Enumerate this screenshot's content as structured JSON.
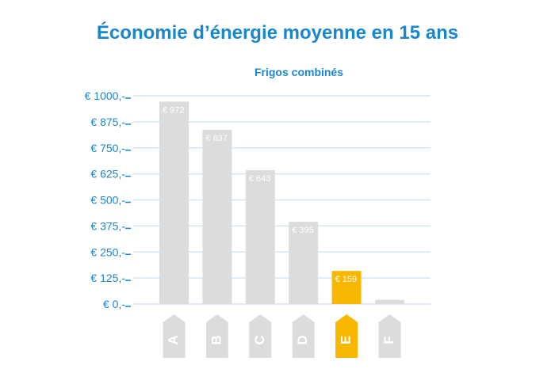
{
  "colors": {
    "accent": "#1a86d0",
    "bar": "#dcdcdc",
    "bar_highlight": "#f9b800",
    "grid": "#d4e6f3",
    "bar_label": "#ffffff",
    "category_text": "#ffffff"
  },
  "chart_data": {
    "type": "bar",
    "title": "Économie d’énergie moyenne en 15 ans",
    "subtitle": "Frigos combinés",
    "categories": [
      "A",
      "B",
      "C",
      "D",
      "E",
      "F"
    ],
    "values": [
      972,
      837,
      643,
      395,
      159,
      20
    ],
    "value_labels": [
      "€ 972",
      "€ 837",
      "€ 643",
      "€ 395",
      "€ 159",
      ""
    ],
    "highlight_category": "E",
    "yticks": [
      0,
      125,
      250,
      375,
      500,
      625,
      750,
      875,
      1000
    ],
    "ytick_labels": [
      "€ 0,-",
      "€ 125,-",
      "€ 250,-",
      "€ 375,-",
      "€ 500,-",
      "€ 625,-",
      "€ 750,-",
      "€ 875,-",
      "€ 1000,-"
    ],
    "ylim": [
      0,
      1000
    ],
    "grid": true,
    "xlabel": "",
    "ylabel": ""
  }
}
